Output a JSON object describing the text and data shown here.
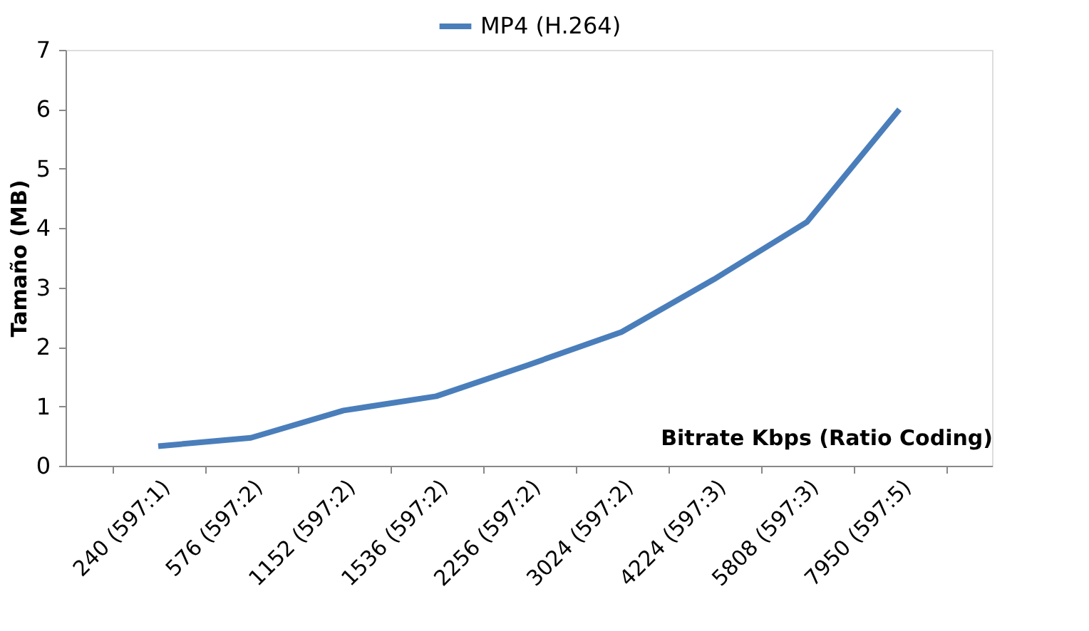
{
  "chart_data": {
    "type": "line",
    "xlabel": "Bitrate Kbps (Ratio Coding)",
    "ylabel": "Tamaño (MB)",
    "categories": [
      "240 (597:1)",
      "576 (597:2)",
      "1152 (597:2)",
      "1536 (597:2)",
      "2256 (597:2)",
      "3024 (597:2)",
      "4224 (597:3)",
      "5808 (597:3)",
      "7950 (597:5)"
    ],
    "series": [
      {
        "name": "MP4 (H.264)",
        "color": "#4a7ebb",
        "values": [
          0.33,
          0.47,
          0.93,
          1.17,
          1.7,
          2.25,
          3.14,
          4.1,
          6.0
        ]
      }
    ],
    "ylim": [
      0,
      7
    ],
    "yticks": [
      0,
      1,
      2,
      3,
      4,
      5,
      6,
      7
    ],
    "grid": false,
    "legend": "top",
    "marker": "none",
    "line_style": "solid"
  }
}
